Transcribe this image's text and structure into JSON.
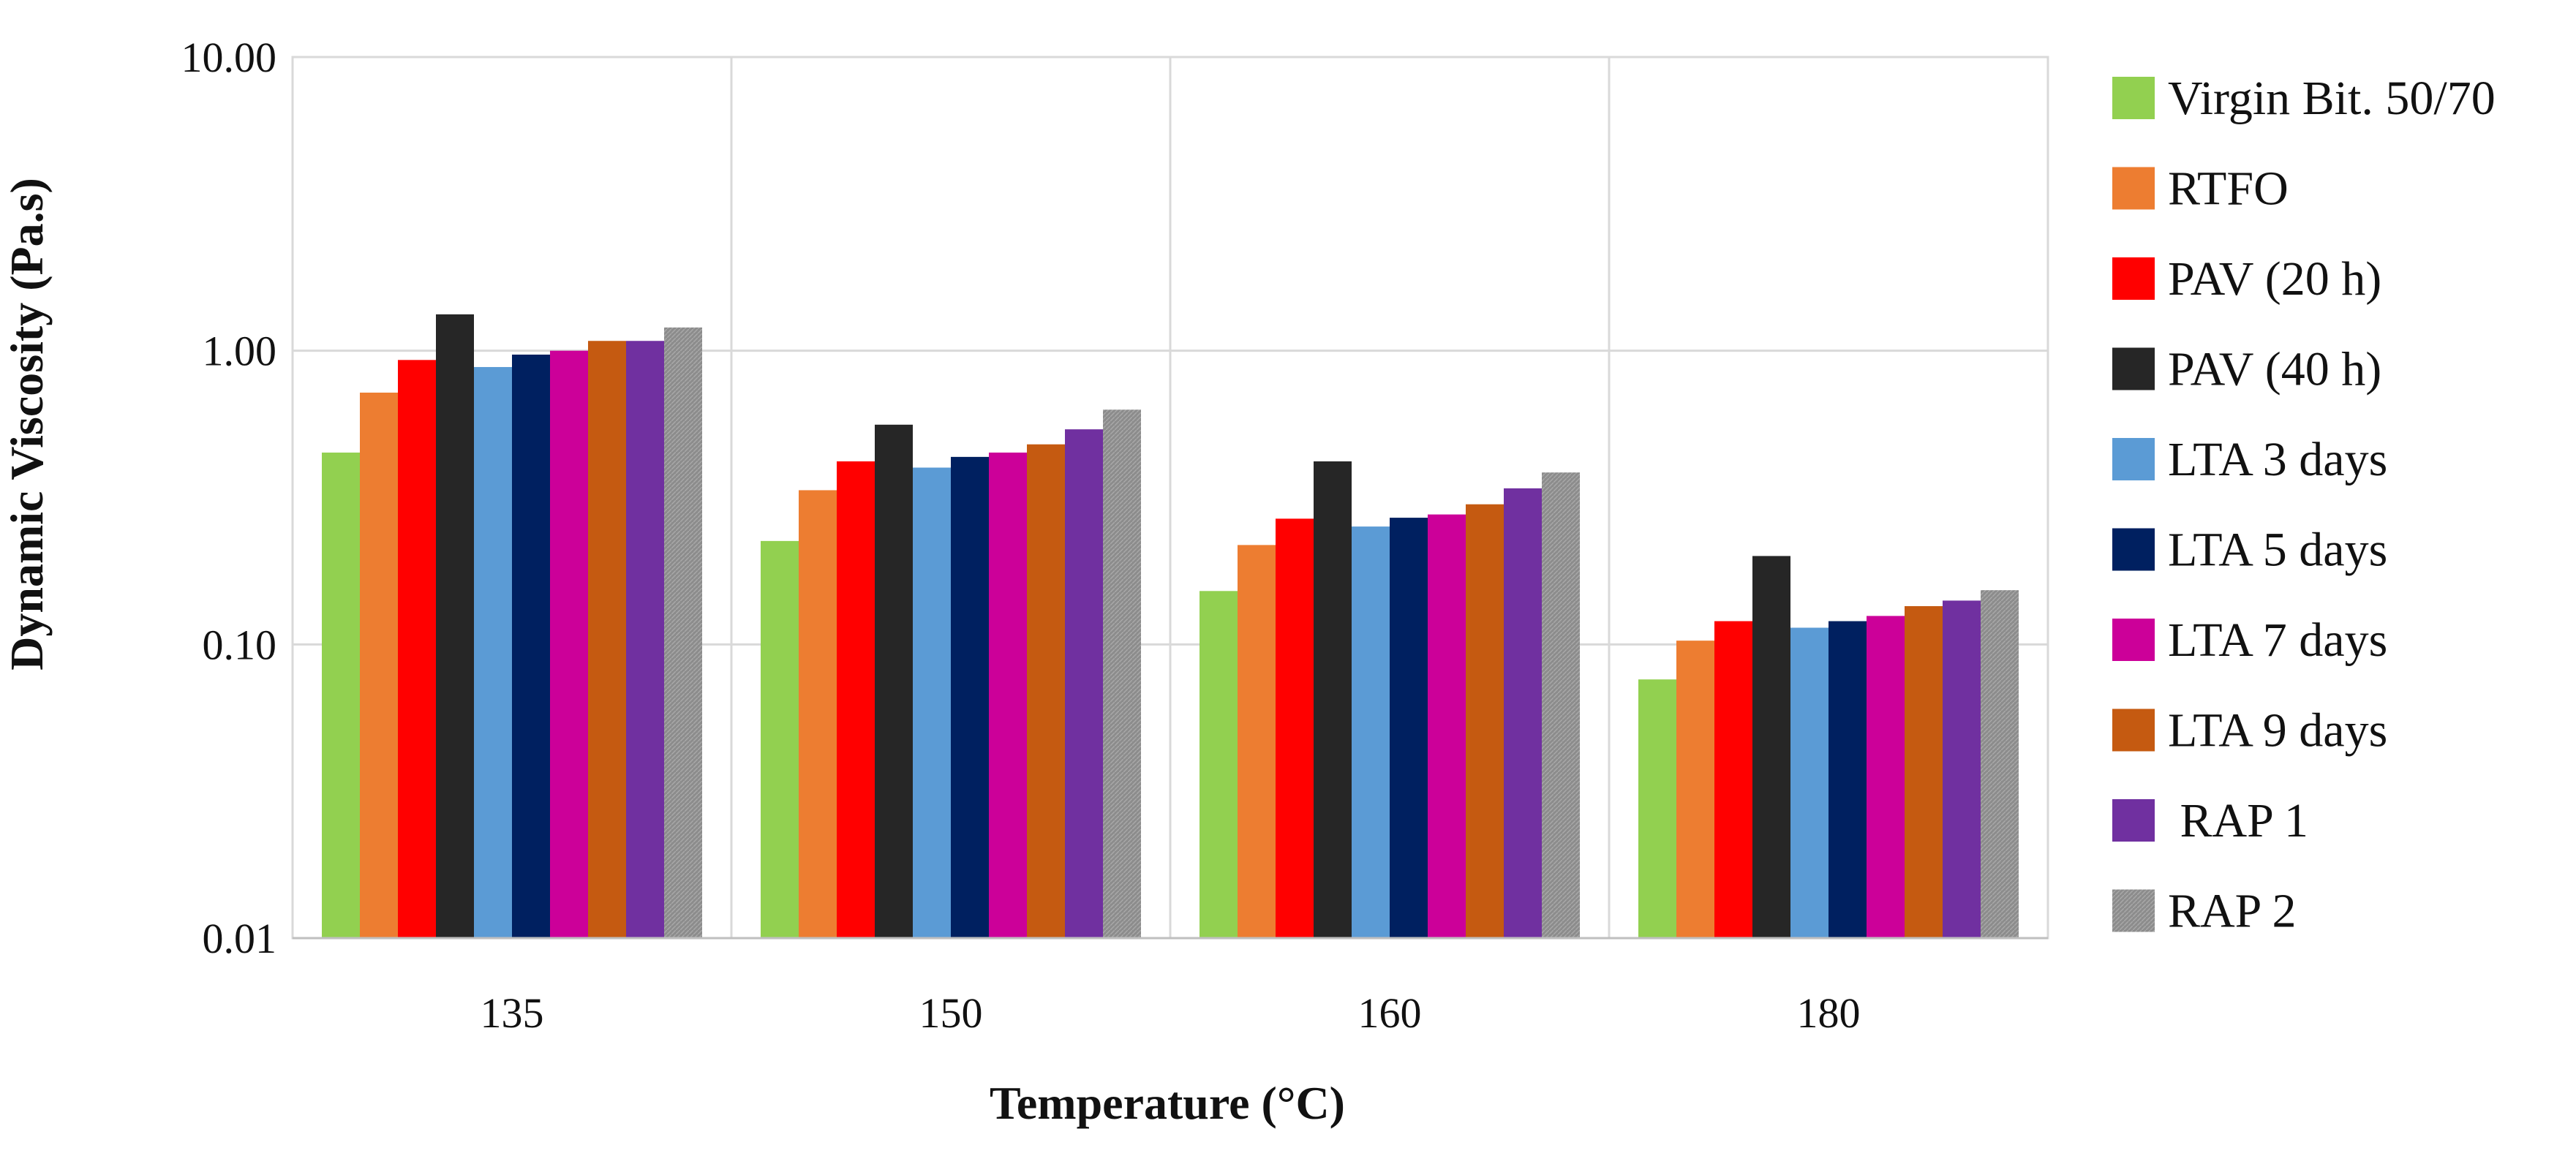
{
  "chart_data": {
    "type": "bar",
    "title": "",
    "xlabel": "Temperature (°C)",
    "ylabel": "Dynamic Viscosity (Pa.s)",
    "yscale": "log",
    "ylim": [
      0.01,
      10
    ],
    "yticks": [
      {
        "value": 0.01,
        "label": "0.01"
      },
      {
        "value": 0.1,
        "label": "0.10"
      },
      {
        "value": 1,
        "label": "1.00"
      },
      {
        "value": 10,
        "label": "10.00"
      }
    ],
    "grid": true,
    "legend_position": "right",
    "categories": [
      "135",
      "150",
      "160",
      "180"
    ],
    "series": [
      {
        "name": "Virgin Bit. 50/70",
        "color": "#92d050",
        "values": [
          0.45,
          0.225,
          0.152,
          0.076
        ]
      },
      {
        "name": "RTFO",
        "color": "#ed7d31",
        "values": [
          0.72,
          0.335,
          0.218,
          0.103
        ]
      },
      {
        "name": "PAV (20 h)",
        "color": "#ff0000",
        "values": [
          0.93,
          0.42,
          0.268,
          0.12
        ]
      },
      {
        "name": "PAV (40 h)",
        "color": "#262626",
        "values": [
          1.33,
          0.56,
          0.42,
          0.2
        ]
      },
      {
        "name": "LTA 3 days",
        "color": "#5b9bd5",
        "values": [
          0.88,
          0.4,
          0.252,
          0.114
        ]
      },
      {
        "name": "LTA 5 days",
        "color": "#002060",
        "values": [
          0.97,
          0.435,
          0.27,
          0.12
        ]
      },
      {
        "name": "LTA 7 days",
        "color": "#cc0099",
        "values": [
          1.0,
          0.45,
          0.277,
          0.125
        ]
      },
      {
        "name": "LTA 9 days",
        "color": "#c55a11",
        "values": [
          1.08,
          0.48,
          0.3,
          0.135
        ]
      },
      {
        "name": " RAP 1",
        "color": "#7030a0",
        "values": [
          1.08,
          0.54,
          0.34,
          0.141
        ]
      },
      {
        "name": "RAP 2",
        "color": "#8c8c8c",
        "values": [
          1.2,
          0.63,
          0.385,
          0.153
        ]
      }
    ]
  }
}
